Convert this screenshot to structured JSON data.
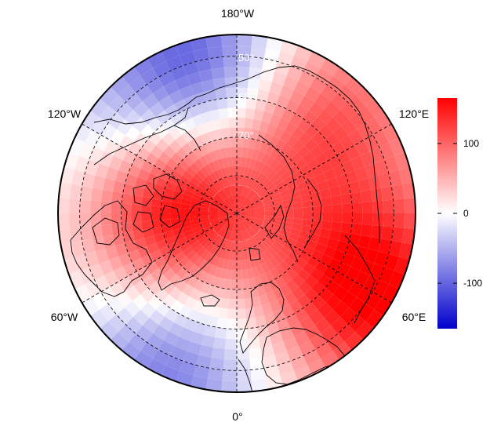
{
  "map": {
    "projection": "north-polar-stereographic",
    "center": "north-pole",
    "bounding_latitude": 45,
    "longitude_labels": [
      {
        "lon": 180,
        "text": "180°W"
      },
      {
        "lon": -120,
        "text": "120°W"
      },
      {
        "lon": 120,
        "text": "120°E"
      },
      {
        "lon": -60,
        "text": "60°W"
      },
      {
        "lon": 60,
        "text": "60°E"
      },
      {
        "lon": 0,
        "text": "0°"
      }
    ],
    "latitude_labels": [
      {
        "lat": 50,
        "text": "50°"
      },
      {
        "lat": 60,
        "text": "60°"
      },
      {
        "lat": 70,
        "text": "70°"
      }
    ],
    "graticule_latitudes": [
      50,
      60,
      70,
      80
    ],
    "graticule_longitudes": [
      0,
      60,
      120,
      180,
      -120,
      -60
    ],
    "field_anomalies": [
      {
        "lon": 95,
        "lat": 73,
        "value": 170
      },
      {
        "lon": -60,
        "lat": 52,
        "value": 165
      },
      {
        "lon": -140,
        "lat": 58,
        "value": 110
      },
      {
        "lon": 165,
        "lat": 52,
        "value": -130
      },
      {
        "lon": 25,
        "lat": 47,
        "value": -100
      },
      {
        "lon": 115,
        "lat": 50,
        "value": -40
      }
    ]
  },
  "colorbar": {
    "min": -165,
    "max": 165,
    "ticks": [
      {
        "value": 100,
        "text": "100"
      },
      {
        "value": 0,
        "text": "0"
      },
      {
        "value": -100,
        "text": "-100"
      }
    ],
    "colors": {
      "low": "#0000cc",
      "mid": "#ffffff",
      "high": "#ff0000"
    }
  }
}
